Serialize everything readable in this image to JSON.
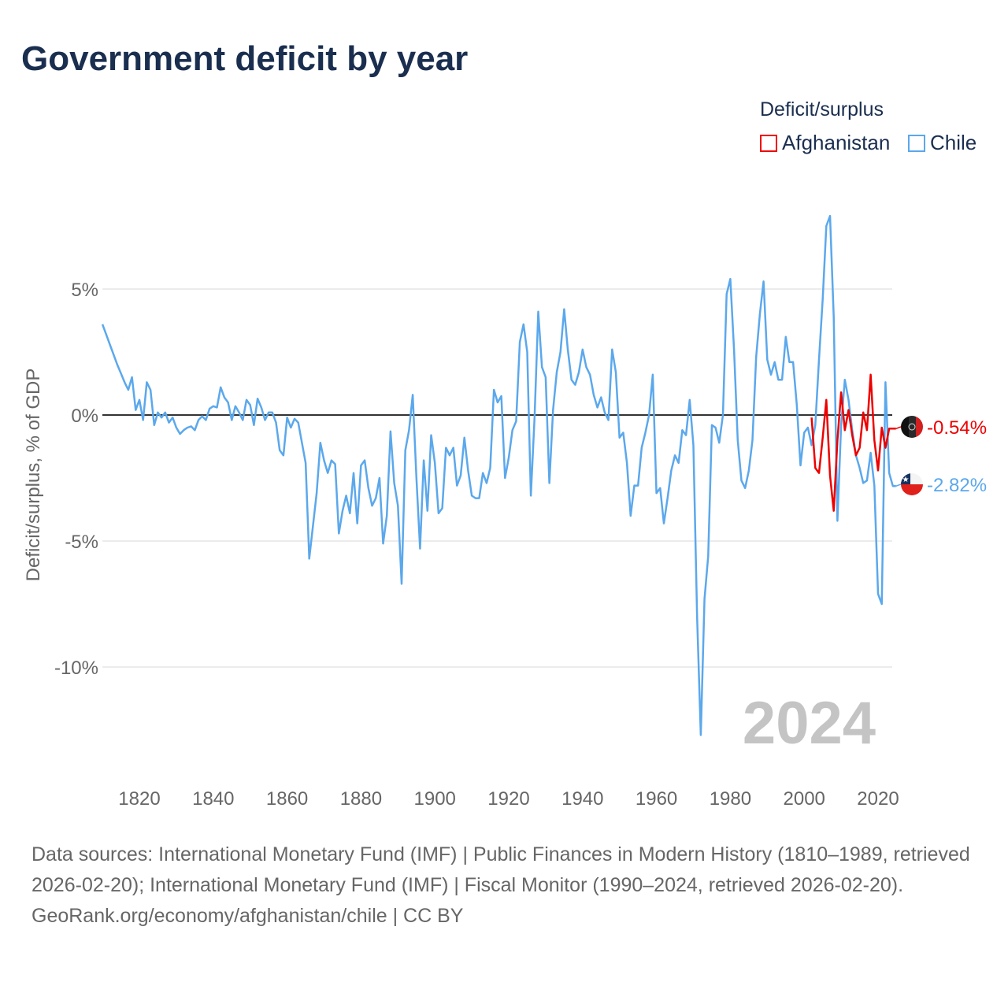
{
  "title": "Government deficit by year",
  "legend": {
    "title": "Deficit/surplus",
    "items": [
      {
        "name": "Afghanistan",
        "color": "#ee0000"
      },
      {
        "name": "Chile",
        "color": "#5ba8ec"
      }
    ]
  },
  "year_watermark": "2024",
  "footer": {
    "sources": "Data sources: International Monetary Fund (IMF) | Public Finances in Modern History (1810–1989, retrieved 2026-02-20); International Monetary Fund (IMF) | Fiscal Monitor (1990–2024, retrieved 2026-02-20).",
    "credit": "GeoRank.org/economy/afghanistan/chile | CC BY"
  },
  "chart_data": {
    "type": "line",
    "title": "Government deficit by year",
    "ylabel": "Deficit/surplus, % of GDP",
    "xlabel": "",
    "xlim": [
      1810,
      2024
    ],
    "ylim": [
      -13,
      8.5
    ],
    "x_ticks": [
      "1820",
      "1840",
      "1860",
      "1880",
      "1900",
      "1920",
      "1940",
      "1960",
      "1980",
      "2000",
      "2020"
    ],
    "y_ticks": [
      {
        "value": 5,
        "label": "5%"
      },
      {
        "value": 0,
        "label": "0%"
      },
      {
        "value": -5,
        "label": "-5%"
      },
      {
        "value": -10,
        "label": "-10%"
      }
    ],
    "grid": true,
    "legend_position": "top-right",
    "series": [
      {
        "name": "Chile",
        "color": "#5ba8ec",
        "start_year": 1810,
        "end_label": "-2.82%",
        "values": [
          3.6,
          3.2,
          2.8,
          2.4,
          2.0,
          1.65,
          1.3,
          1.0,
          1.5,
          0.2,
          0.6,
          -0.2,
          1.3,
          1.0,
          -0.4,
          0.1,
          -0.1,
          0.1,
          -0.3,
          -0.1,
          -0.5,
          -0.75,
          -0.6,
          -0.5,
          -0.45,
          -0.6,
          -0.2,
          -0.05,
          -0.2,
          0.25,
          0.35,
          0.3,
          1.1,
          0.7,
          0.5,
          -0.2,
          0.35,
          0.1,
          -0.2,
          0.6,
          0.4,
          -0.4,
          0.65,
          0.3,
          -0.2,
          0.1,
          0.1,
          -0.3,
          -1.4,
          -1.6,
          -0.1,
          -0.5,
          -0.15,
          -0.3,
          -1.1,
          -1.9,
          -5.7,
          -4.4,
          -3.1,
          -1.1,
          -1.8,
          -2.3,
          -1.8,
          -1.95,
          -4.7,
          -3.8,
          -3.2,
          -3.9,
          -2.3,
          -4.3,
          -2.0,
          -1.8,
          -2.9,
          -3.6,
          -3.3,
          -2.5,
          -5.1,
          -4.0,
          -0.65,
          -2.7,
          -3.6,
          -6.7,
          -1.4,
          -0.6,
          0.8,
          -2.5,
          -5.3,
          -1.8,
          -3.8,
          -0.8,
          -1.9,
          -3.9,
          -3.7,
          -1.3,
          -1.6,
          -1.3,
          -2.8,
          -2.4,
          -0.9,
          -2.2,
          -3.2,
          -3.3,
          -3.3,
          -2.3,
          -2.7,
          -2.1,
          1.0,
          0.5,
          0.75,
          -2.5,
          -1.7,
          -0.6,
          -0.25,
          2.9,
          3.6,
          2.5,
          -3.2,
          -0.1,
          4.1,
          1.9,
          1.5,
          -2.7,
          0.2,
          1.7,
          2.5,
          4.2,
          2.6,
          1.4,
          1.2,
          1.7,
          2.6,
          1.9,
          1.6,
          0.8,
          0.3,
          0.7,
          0.1,
          -0.2,
          2.6,
          1.7,
          -0.9,
          -0.7,
          -1.9,
          -4.0,
          -2.8,
          -2.8,
          -1.3,
          -0.7,
          0.0,
          1.6,
          -3.1,
          -2.9,
          -4.3,
          -3.3,
          -2.2,
          -1.6,
          -1.9,
          -0.6,
          -0.8,
          0.6,
          -1.2,
          -8.0,
          -12.7,
          -7.3,
          -5.6,
          -0.4,
          -0.5,
          -1.1,
          0.0,
          4.8,
          5.4,
          2.6,
          -1.0,
          -2.6,
          -2.9,
          -2.2,
          -1.0,
          2.3,
          4.0,
          5.3,
          2.2,
          1.6,
          2.1,
          1.4,
          1.4,
          3.1,
          2.1,
          2.1,
          0.4,
          -2.0,
          -0.7,
          -0.5,
          -1.2,
          -0.4,
          2.2,
          4.6,
          7.5,
          7.9,
          3.9,
          -4.2,
          -0.4,
          1.4,
          0.6,
          -0.6,
          -1.6,
          -2.1,
          -2.7,
          -2.6,
          -1.5,
          -2.8,
          -7.1,
          -7.5,
          1.3,
          -2.3,
          -2.82
        ]
      },
      {
        "name": "Afghanistan",
        "color": "#ee0000",
        "start_year": 2002,
        "end_label": "-0.54%",
        "values": [
          -0.1,
          -2.1,
          -2.3,
          -0.9,
          0.6,
          -2.4,
          -3.8,
          -1.0,
          0.9,
          -0.6,
          0.2,
          -0.8,
          -1.6,
          -1.3,
          0.1,
          -0.6,
          1.6,
          -1.0,
          -2.2,
          -0.5,
          -1.3,
          -0.54,
          -0.54
        ]
      }
    ]
  }
}
